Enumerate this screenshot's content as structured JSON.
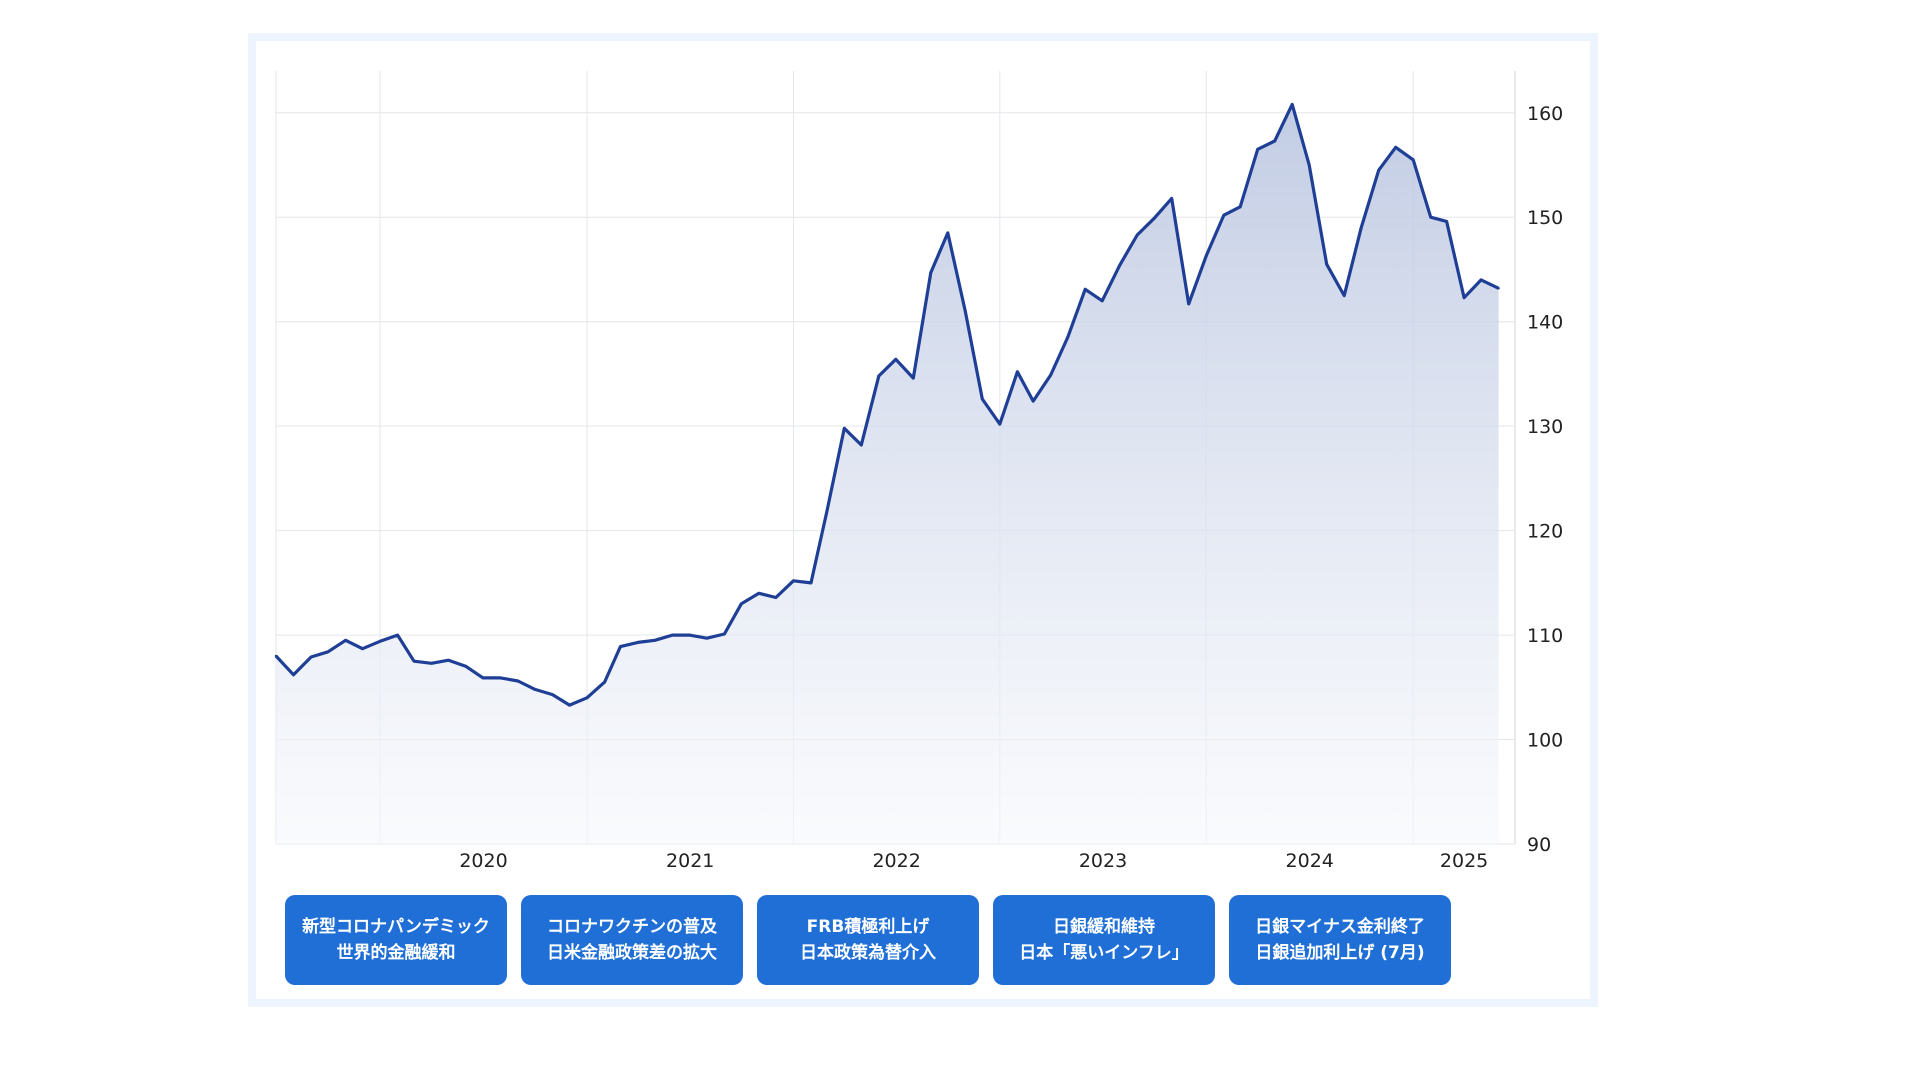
{
  "colors": {
    "line": "#1f3f96",
    "fill_top": "#b7c3df",
    "fill_bottom": "#f6f8fc",
    "grid": "#e3e6ec",
    "event_bg": "#1f6fd6"
  },
  "events": [
    {
      "line1": "新型コロナパンデミック",
      "line2": "世界的金融緩和"
    },
    {
      "line1": "コロナワクチンの普及",
      "line2": "日米金融政策差の拡大"
    },
    {
      "line1": "FRB積極利上げ",
      "line2": "日本政策為替介入"
    },
    {
      "line1": "日銀緩和維持",
      "line2": "日本「悪いインフレ」"
    },
    {
      "line1": "日銀マイナス金利終了",
      "line2": "日銀追加利上げ (7月)"
    }
  ],
  "chart_data": {
    "type": "area",
    "title": "",
    "xlabel": "",
    "ylabel": "",
    "y_axis_position": "right",
    "grid": true,
    "ylim": [
      90,
      164
    ],
    "xlim": [
      "2019-07-01",
      "2025-06-30"
    ],
    "yticks": [
      90,
      100,
      110,
      120,
      130,
      140,
      150,
      160
    ],
    "xticks": [
      "2020",
      "2021",
      "2022",
      "2023",
      "2024",
      "2025"
    ],
    "series": [
      {
        "x": [
          "2019-07-01",
          "2019-08-01",
          "2019-09-01",
          "2019-10-01",
          "2019-11-01",
          "2019-12-01",
          "2020-01-01",
          "2020-02-01",
          "2020-03-01",
          "2020-04-01",
          "2020-05-01",
          "2020-06-01",
          "2020-07-01",
          "2020-08-01",
          "2020-09-01",
          "2020-10-01",
          "2020-11-01",
          "2020-12-01",
          "2021-01-01",
          "2021-02-01",
          "2021-03-01",
          "2021-04-01",
          "2021-05-01",
          "2021-06-01",
          "2021-07-01",
          "2021-08-01",
          "2021-09-01",
          "2021-10-01",
          "2021-11-01",
          "2021-12-01",
          "2022-01-01",
          "2022-02-01",
          "2022-03-01",
          "2022-04-01",
          "2022-05-01",
          "2022-06-01",
          "2022-07-01",
          "2022-08-01",
          "2022-09-01",
          "2022-10-01",
          "2022-11-01",
          "2022-12-01",
          "2023-01-01",
          "2023-02-01",
          "2023-03-01",
          "2023-04-01",
          "2023-05-01",
          "2023-06-01",
          "2023-07-01",
          "2023-08-01",
          "2023-09-01",
          "2023-10-01",
          "2023-11-01",
          "2023-12-01",
          "2024-01-01",
          "2024-02-01",
          "2024-03-01",
          "2024-04-01",
          "2024-05-01",
          "2024-06-01",
          "2024-07-01",
          "2024-08-01",
          "2024-09-01",
          "2024-10-01",
          "2024-11-01",
          "2024-12-01",
          "2025-01-01",
          "2025-02-01",
          "2025-03-01",
          "2025-04-01",
          "2025-05-01",
          "2025-06-01"
        ],
        "values": [
          108.0,
          106.2,
          107.9,
          108.4,
          109.5,
          108.7,
          109.4,
          110.0,
          107.5,
          107.3,
          107.6,
          107.0,
          105.9,
          105.9,
          105.6,
          104.8,
          104.3,
          103.3,
          104.0,
          105.5,
          108.9,
          109.3,
          109.5,
          110.0,
          110.0,
          109.7,
          110.1,
          113.0,
          114.0,
          113.6,
          115.2,
          115.0,
          121.8,
          129.8,
          128.2,
          134.8,
          136.4,
          134.6,
          144.7,
          148.5,
          141.0,
          132.6,
          130.2,
          135.2,
          132.4,
          134.9,
          138.5,
          143.1,
          142.0,
          145.4,
          148.3,
          149.9,
          151.8,
          141.7,
          146.3,
          150.2,
          151.0,
          156.5,
          157.3,
          160.8,
          155.0,
          145.5,
          142.5,
          149.0,
          154.5,
          156.7,
          155.5,
          150.0,
          149.6,
          142.3,
          144.0,
          143.2
        ]
      }
    ]
  }
}
